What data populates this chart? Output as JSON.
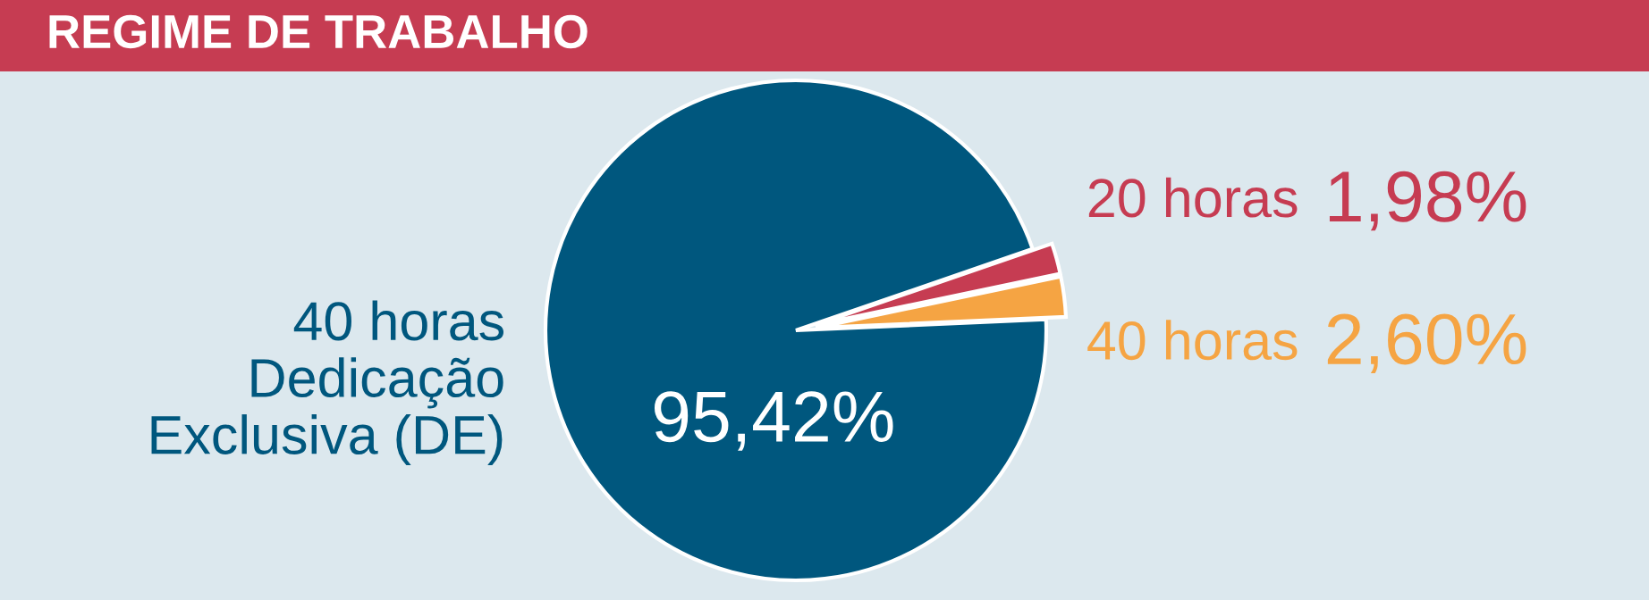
{
  "chart_data": {
    "type": "pie",
    "title": "REGIME DE TRABALHO",
    "categories": [
      "20 horas",
      "40 horas",
      "40 horas\nDedicação\nExclusiva (DE)"
    ],
    "values": [
      1.98,
      2.6,
      95.42
    ],
    "colors": [
      "#c63c52",
      "#f5a443",
      "#00577e"
    ],
    "value_labels": [
      "1,98%",
      "2,60%",
      "95,42%"
    ]
  }
}
